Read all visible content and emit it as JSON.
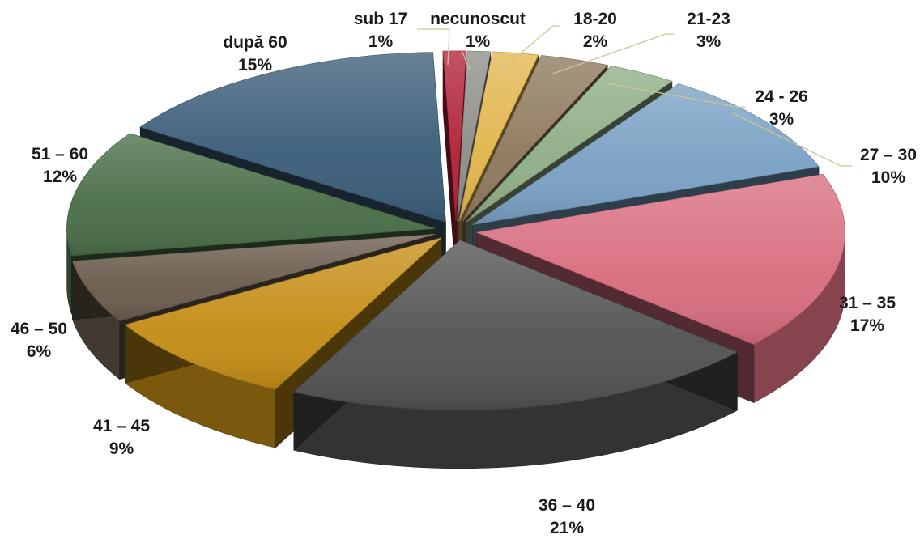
{
  "chart_data": {
    "type": "pie",
    "style": "3d-exploded",
    "title": "",
    "slices": [
      {
        "name": "sub 17",
        "value": 1,
        "label": "1%",
        "color": "#b2233a"
      },
      {
        "name": "necunoscut",
        "value": 1,
        "label": "1%",
        "color": "#8e8e8a"
      },
      {
        "name": "18-20",
        "value": 2,
        "label": "2%",
        "color": "#e2b64e"
      },
      {
        "name": "21-23",
        "value": 3,
        "label": "3%",
        "color": "#8f7a5d"
      },
      {
        "name": "24 - 26",
        "value": 3,
        "label": "3%",
        "color": "#8fae86"
      },
      {
        "name": "27 – 30",
        "value": 10,
        "label": "10%",
        "color": "#7aa1c4"
      },
      {
        "name": "31 – 35",
        "value": 17,
        "label": "17%",
        "color": "#d96e80"
      },
      {
        "name": "36 – 40",
        "value": 21,
        "label": "21%",
        "color": "#535353"
      },
      {
        "name": "41 – 45",
        "value": 9,
        "label": "9%",
        "color": "#c58e17"
      },
      {
        "name": "46 – 50",
        "value": 6,
        "label": "6%",
        "color": "#6b5c4d"
      },
      {
        "name": "51 – 60",
        "value": 12,
        "label": "12%",
        "color": "#4a6e48"
      },
      {
        "name": "după 60",
        "value": 15,
        "label": "15%",
        "color": "#3c5e7a"
      }
    ]
  }
}
